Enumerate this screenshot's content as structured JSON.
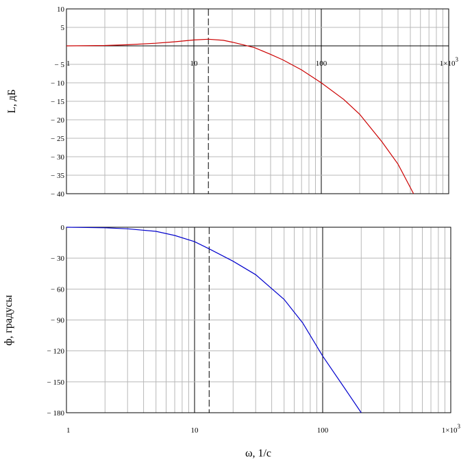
{
  "chart_data": [
    {
      "type": "line",
      "ylabel": "L, дБ",
      "xlabel": "",
      "xscale": "log",
      "xlim": [
        1,
        1000
      ],
      "ylim": [
        -40,
        10
      ],
      "grid": true,
      "x_ticks": [
        {
          "v": 1,
          "label": "1"
        },
        {
          "v": 10,
          "label": "10"
        },
        {
          "v": 100,
          "label": "100"
        },
        {
          "v": 1000,
          "label": "1×10",
          "exp": "3"
        }
      ],
      "y_ticks": [
        {
          "v": 10,
          "label": "10"
        },
        {
          "v": 5,
          "label": "5"
        },
        {
          "v": -5,
          "label": "− 5"
        },
        {
          "v": -10,
          "label": "− 10"
        },
        {
          "v": -15,
          "label": "− 15"
        },
        {
          "v": -20,
          "label": "− 20"
        },
        {
          "v": -25,
          "label": "− 25"
        },
        {
          "v": -30,
          "label": "− 30"
        },
        {
          "v": -35,
          "label": "− 35"
        },
        {
          "v": -40,
          "label": "− 40"
        }
      ],
      "marker_x": 13,
      "series": [
        {
          "color": "#cc0000",
          "x": [
            1,
            2,
            3,
            5,
            7,
            10,
            13,
            17,
            20,
            25,
            30,
            40,
            50,
            70,
            100,
            150,
            200,
            300,
            400,
            530
          ],
          "y": [
            0,
            0.1,
            0.3,
            0.7,
            1.1,
            1.6,
            1.8,
            1.5,
            1.0,
            0.2,
            -0.5,
            -2.3,
            -3.8,
            -6.5,
            -10,
            -14.5,
            -18.5,
            -26,
            -32,
            -40
          ]
        }
      ]
    },
    {
      "type": "line",
      "ylabel": "ф, градусы",
      "xlabel": "ω, 1/c",
      "xscale": "log",
      "xlim": [
        1,
        1000
      ],
      "ylim": [
        -180,
        0
      ],
      "grid": true,
      "x_ticks": [
        {
          "v": 1,
          "label": "1"
        },
        {
          "v": 10,
          "label": "10"
        },
        {
          "v": 100,
          "label": "100"
        },
        {
          "v": 1000,
          "label": "1×10",
          "exp": "3"
        }
      ],
      "y_ticks": [
        {
          "v": 0,
          "label": "0"
        },
        {
          "v": -30,
          "label": "− 30"
        },
        {
          "v": -60,
          "label": "− 60"
        },
        {
          "v": -90,
          "label": "− 90"
        },
        {
          "v": -120,
          "label": "− 120"
        },
        {
          "v": -150,
          "label": "− 150"
        },
        {
          "v": -180,
          "label": "− 180"
        }
      ],
      "marker_x": 13,
      "series": [
        {
          "color": "#0000cc",
          "x": [
            1,
            2,
            3,
            5,
            7,
            10,
            13,
            20,
            30,
            50,
            70,
            100,
            150,
            200
          ],
          "y": [
            0,
            -0.5,
            -1.5,
            -4,
            -8,
            -14,
            -21,
            -33,
            -46,
            -70,
            -93,
            -125,
            -157,
            -180
          ]
        }
      ]
    }
  ]
}
